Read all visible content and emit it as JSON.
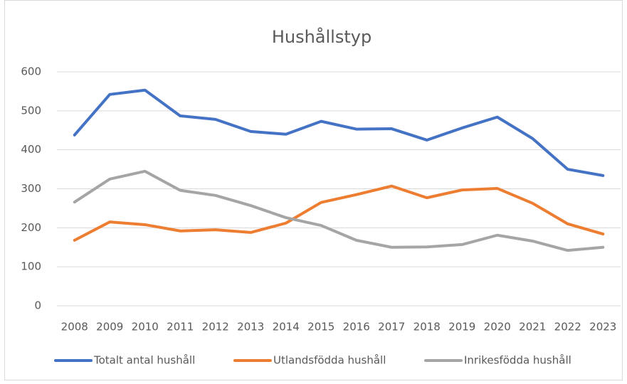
{
  "chart_data": {
    "type": "line",
    "title": "Hushållstyp",
    "categories": [
      "2008",
      "2009",
      "2010",
      "2011",
      "2012",
      "2013",
      "2014",
      "2015",
      "2016",
      "2017",
      "2018",
      "2019",
      "2020",
      "2021",
      "2022",
      "2023"
    ],
    "series": [
      {
        "name": "Totalt antal hushåll",
        "color": "#4472c4",
        "values": [
          438,
          542,
          553,
          487,
          478,
          447,
          440,
          473,
          453,
          454,
          425,
          456,
          484,
          429,
          350,
          334
        ]
      },
      {
        "name": "Utlandsfödda hushåll",
        "color": "#ed7d31",
        "values": [
          168,
          215,
          208,
          192,
          195,
          188,
          212,
          265,
          285,
          307,
          277,
          297,
          301,
          263,
          210,
          184
        ]
      },
      {
        "name": "Inrikesfödda hushåll",
        "color": "#a5a5a5",
        "values": [
          266,
          325,
          345,
          296,
          283,
          257,
          226,
          206,
          168,
          150,
          151,
          157,
          181,
          166,
          142,
          150
        ]
      }
    ],
    "ylim": [
      0,
      600
    ],
    "yticks": [
      0,
      100,
      200,
      300,
      400,
      500,
      600
    ],
    "grid": true,
    "legend": "bottom"
  }
}
